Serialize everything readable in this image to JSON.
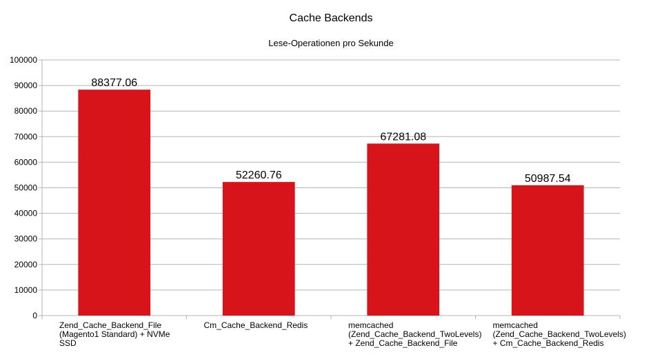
{
  "chart_data": {
    "type": "bar",
    "title": "Cache Backends",
    "subtitle": "Lese-Operationen pro Sekunde",
    "categories": [
      "Zend_Cache_Backend_File\n(Magento1 Standard) + NVMe\nSSD",
      "Cm_Cache_Backend_Redis",
      "memcached\n(Zend_Cache_Backend_TwoLevels)\n+ Zend_Cache_Backend_File",
      "memcached\n(Zend_Cache_Backend_TwoLevels)\n+ Cm_Cache_Backend_Redis"
    ],
    "values": [
      88377.06,
      52260.76,
      67281.08,
      50987.54
    ],
    "data_labels": [
      "88377.06",
      "52260.76",
      "67281.08",
      "50987.54"
    ],
    "ylim": [
      0,
      100000
    ],
    "yticks": [
      0,
      10000,
      20000,
      30000,
      40000,
      50000,
      60000,
      70000,
      80000,
      90000,
      100000
    ],
    "grid": true,
    "legend": "none",
    "bar_color": "#d7141a",
    "grid_color": "#b3b3b3"
  }
}
